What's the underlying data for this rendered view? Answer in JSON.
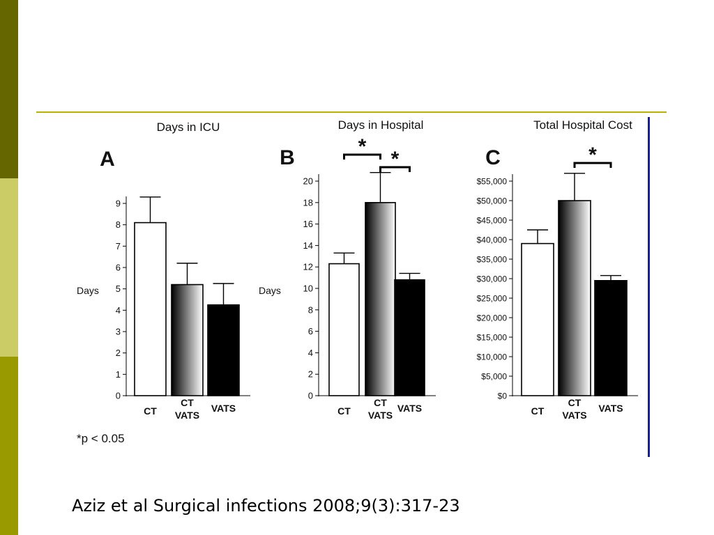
{
  "citation": "Aziz et al Surgical infections 2008;9(3):317-23",
  "footnote": "*p < 0.05",
  "colors": {
    "bar_border": "#000000",
    "ct_fill": "#ffffff",
    "vats_fill": "#000000"
  },
  "chart_data": [
    {
      "type": "bar",
      "panel_letter": "A",
      "title": "Days in ICU",
      "ylabel": "Days",
      "categories": [
        [
          "CT"
        ],
        [
          "CT",
          "VATS"
        ],
        [
          "VATS"
        ]
      ],
      "values": [
        8.1,
        5.2,
        4.25
      ],
      "error_upper": [
        9.3,
        6.2,
        5.25
      ],
      "ylim": [
        0,
        9
      ],
      "yticks": [
        0,
        1,
        2,
        3,
        4,
        5,
        6,
        7,
        8,
        9
      ],
      "ytick_labels": [
        "0",
        "1",
        "2",
        "3",
        "4",
        "5",
        "6",
        "7",
        "8",
        "9"
      ],
      "significance": []
    },
    {
      "type": "bar",
      "panel_letter": "B",
      "title": "Days in Hospital",
      "ylabel": "Days",
      "categories": [
        [
          "CT"
        ],
        [
          "CT",
          "VATS"
        ],
        [
          "VATS"
        ]
      ],
      "values": [
        12.3,
        18.0,
        10.8
      ],
      "error_upper": [
        13.3,
        20.8,
        11.4
      ],
      "ylim": [
        0,
        20
      ],
      "yticks": [
        0,
        2,
        4,
        6,
        8,
        10,
        12,
        14,
        16,
        18,
        20
      ],
      "ytick_labels": [
        "0",
        "2",
        "4",
        "6",
        "8",
        "10",
        "12",
        "14",
        "16",
        "18",
        "20"
      ],
      "significance": [
        {
          "from": 0,
          "to": 1,
          "label": "*"
        },
        {
          "from": 1,
          "to": 2,
          "label": "*"
        }
      ]
    },
    {
      "type": "bar",
      "panel_letter": "C",
      "title": "Total Hospital Cost",
      "ylabel": "",
      "categories": [
        [
          "CT"
        ],
        [
          "CT",
          "VATS"
        ],
        [
          "VATS"
        ]
      ],
      "values": [
        39000,
        50000,
        29500
      ],
      "error_upper": [
        42500,
        57000,
        30800
      ],
      "ylim": [
        0,
        55000
      ],
      "yticks": [
        0,
        5000,
        10000,
        15000,
        20000,
        25000,
        30000,
        35000,
        40000,
        45000,
        50000,
        55000
      ],
      "ytick_labels": [
        "$0",
        "$5,000",
        "$10,000",
        "$15,000",
        "$20,000",
        "$25,000",
        "$30,000",
        "$35,000",
        "$40,000",
        "$45,000",
        "$50,000",
        "$55,000"
      ],
      "significance": [
        {
          "from": 1,
          "to": 2,
          "label": "*"
        }
      ]
    }
  ]
}
